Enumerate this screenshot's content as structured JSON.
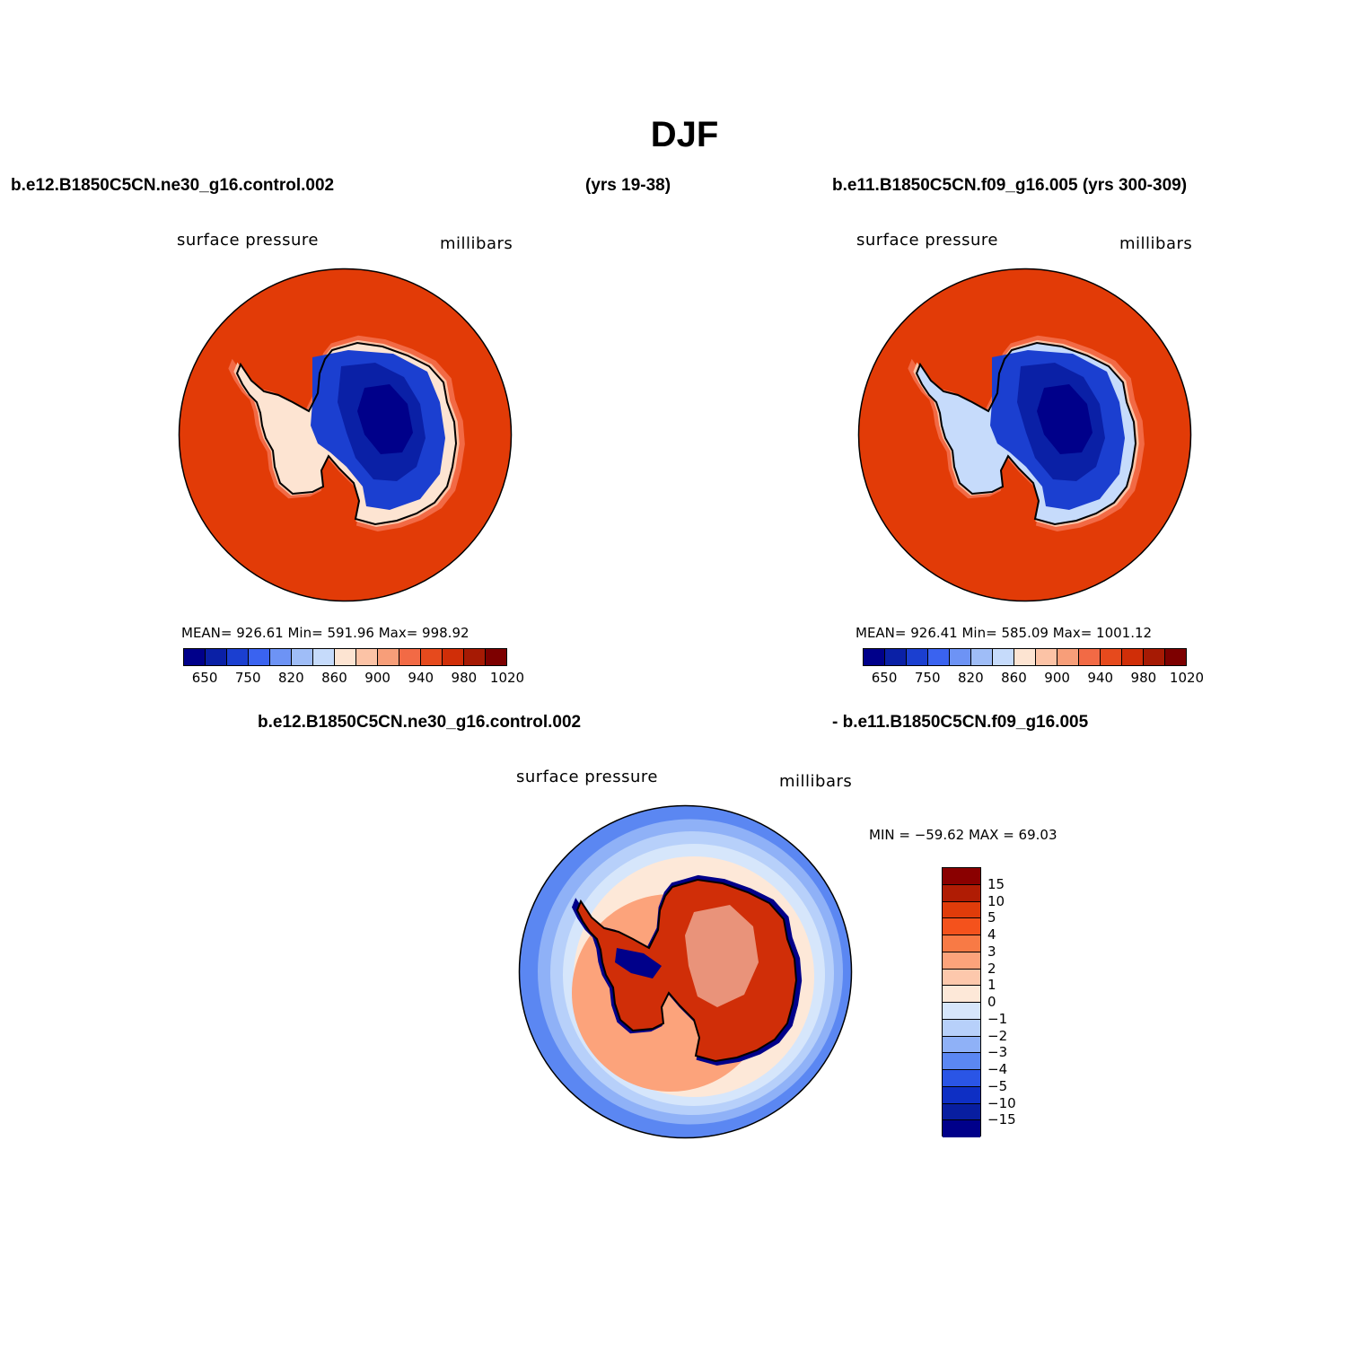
{
  "title": "DJF",
  "header": {
    "case1": "b.e12.B1850C5CN.ne30_g16.control.002",
    "years1": "(yrs 19-38)",
    "case2": "b.e11.B1850C5CN.f09_g16.005 (yrs 300-309)",
    "diff_case1": "b.e12.B1850C5CN.ne30_g16.control.002",
    "diff_case2": "- b.e11.B1850C5CN.f09_g16.005"
  },
  "panels": [
    {
      "variable": "surface pressure",
      "units": "millibars",
      "stats": "MEAN=  926.61   Min=  591.96   Max=  998.92",
      "colorbar": {
        "levels": [
          "650",
          "750",
          "820",
          "860",
          "900",
          "940",
          "980",
          "1020"
        ],
        "colors": [
          "#00008a",
          "#0a20a6",
          "#1b3fd0",
          "#3a63f0",
          "#6d93f5",
          "#9fbdf7",
          "#c6dbfb",
          "#fde4d2",
          "#fcc3a6",
          "#f79e79",
          "#f26a45",
          "#e64a1d",
          "#d02e08",
          "#a61a04",
          "#7d0000"
        ]
      },
      "colors": {
        "ocean": "#e23b07",
        "coast": "#f26a45",
        "ice_edge": "#fcc3a6",
        "low1": "#1b3fd0",
        "low2": "#0a20a6",
        "low3": "#00008a",
        "peninsula": "#fde4d2"
      }
    },
    {
      "variable": "surface pressure",
      "units": "millibars",
      "stats": "MEAN=  926.41   Min=  585.09   Max=  1001.12",
      "colorbar": {
        "levels": [
          "650",
          "750",
          "820",
          "860",
          "900",
          "940",
          "980",
          "1020"
        ],
        "colors": [
          "#00008a",
          "#0a20a6",
          "#1b3fd0",
          "#3a63f0",
          "#6d93f5",
          "#9fbdf7",
          "#c6dbfb",
          "#fde4d2",
          "#fcc3a6",
          "#f79e79",
          "#f26a45",
          "#e64a1d",
          "#d02e08",
          "#a61a04",
          "#7d0000"
        ]
      },
      "colors": {
        "ocean": "#e23b07",
        "coast": "#f26a45",
        "ice_edge": "#fcc3a6",
        "low1": "#1b3fd0",
        "low2": "#0a20a6",
        "low3": "#00008a",
        "peninsula": "#c6dbfb"
      }
    },
    {
      "variable": "surface pressure",
      "units": "millibars",
      "stats": "MIN = −59.62 MAX =   69.03",
      "colorbar": {
        "levels": [
          "15",
          "10",
          "5",
          "4",
          "3",
          "2",
          "1",
          "0",
          "−1",
          "−2",
          "−3",
          "−4",
          "−5",
          "−10",
          "−15"
        ],
        "colors": [
          "#8a0000",
          "#b01c04",
          "#e03c0a",
          "#f4521c",
          "#f87a45",
          "#fca37b",
          "#fdc8ac",
          "#fde8d8",
          "#d6e6fb",
          "#b7d0fa",
          "#8fb1f7",
          "#5b87f2",
          "#2a55e6",
          "#0e2fc4",
          "#081ea0",
          "#00008a"
        ]
      },
      "colors": {
        "outer": "#5b87f2",
        "ring1": "#8fb1f7",
        "ring2": "#b7d0fa",
        "ring3": "#d6e6fb",
        "ring4": "#fde8d8",
        "inner": "#fca37b",
        "edge": "#00008a",
        "land": "#d02e08",
        "land_hi": "#fde8d8"
      }
    }
  ]
}
